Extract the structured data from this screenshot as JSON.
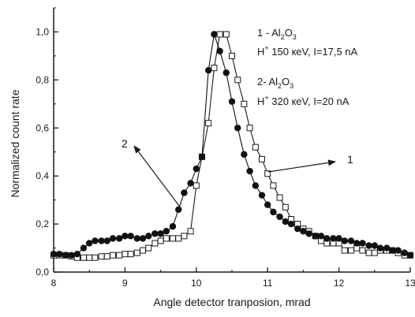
{
  "chart_data": {
    "type": "scatter",
    "xlabel": "Angle detector tranposion, mrad",
    "ylabel": "Normalized count rate",
    "xlim": [
      8,
      13
    ],
    "ylim": [
      0,
      1.1
    ],
    "xticks": [
      8,
      9,
      10,
      11,
      12,
      13
    ],
    "xtick_labels": [
      "8",
      "9",
      "10",
      "11",
      "12",
      "13"
    ],
    "yticks": [
      0,
      0.2,
      0.4,
      0.6,
      0.8,
      1.0
    ],
    "ytick_labels": [
      "0,0",
      "0,2",
      "0,4",
      "0,6",
      "0,8",
      "1,0"
    ],
    "series": [
      {
        "name": "1 - Al2O3 H+ 150 keV, I=17,5 nA",
        "marker": "open-square",
        "color": "#1a1a1a",
        "x": [
          8.0,
          8.08,
          8.17,
          8.25,
          8.33,
          8.42,
          8.5,
          8.58,
          8.67,
          8.75,
          8.83,
          8.92,
          9.0,
          9.08,
          9.17,
          9.25,
          9.33,
          9.42,
          9.5,
          9.58,
          9.67,
          9.75,
          9.83,
          9.92,
          10.0,
          10.08,
          10.17,
          10.25,
          10.33,
          10.42,
          10.5,
          10.58,
          10.67,
          10.75,
          10.83,
          10.92,
          11.0,
          11.08,
          11.17,
          11.25,
          11.33,
          11.42,
          11.5,
          11.58,
          11.67,
          11.75,
          11.83,
          11.92,
          12.0,
          12.08,
          12.17,
          12.25,
          12.33,
          12.42,
          12.5,
          12.58,
          12.67,
          12.75,
          12.83,
          12.92,
          13.0
        ],
        "y": [
          0.07,
          0.07,
          0.07,
          0.065,
          0.06,
          0.06,
          0.06,
          0.06,
          0.065,
          0.065,
          0.07,
          0.07,
          0.075,
          0.075,
          0.08,
          0.09,
          0.1,
          0.12,
          0.13,
          0.14,
          0.14,
          0.14,
          0.15,
          0.17,
          0.36,
          0.48,
          0.62,
          0.85,
          0.99,
          0.99,
          0.9,
          0.8,
          0.7,
          0.6,
          0.52,
          0.47,
          0.41,
          0.36,
          0.31,
          0.27,
          0.22,
          0.2,
          0.18,
          0.17,
          0.15,
          0.13,
          0.12,
          0.12,
          0.12,
          0.09,
          0.09,
          0.1,
          0.09,
          0.08,
          0.08,
          0.09,
          0.09,
          0.09,
          0.08,
          0.07,
          0.07
        ]
      },
      {
        "name": "2 - Al2O3 H+ 320 keV, I=20 nA",
        "marker": "filled-circle",
        "color": "#111111",
        "x": [
          8.0,
          8.08,
          8.17,
          8.25,
          8.33,
          8.42,
          8.5,
          8.58,
          8.67,
          8.75,
          8.83,
          8.92,
          9.0,
          9.08,
          9.17,
          9.25,
          9.33,
          9.42,
          9.5,
          9.58,
          9.67,
          9.75,
          9.83,
          9.92,
          10.0,
          10.08,
          10.17,
          10.25,
          10.33,
          10.42,
          10.5,
          10.58,
          10.67,
          10.75,
          10.83,
          10.92,
          11.0,
          11.08,
          11.17,
          11.25,
          11.33,
          11.42,
          11.5,
          11.58,
          11.67,
          11.75,
          11.83,
          11.92,
          12.0,
          12.08,
          12.17,
          12.25,
          12.33,
          12.42,
          12.5,
          12.58,
          12.67,
          12.75,
          12.83,
          12.92,
          13.0
        ],
        "y": [
          0.075,
          0.075,
          0.07,
          0.07,
          0.075,
          0.1,
          0.12,
          0.13,
          0.13,
          0.13,
          0.14,
          0.14,
          0.15,
          0.15,
          0.14,
          0.14,
          0.15,
          0.16,
          0.16,
          0.17,
          0.19,
          0.26,
          0.33,
          0.37,
          0.43,
          0.48,
          0.84,
          0.99,
          0.92,
          0.83,
          0.71,
          0.6,
          0.49,
          0.42,
          0.36,
          0.32,
          0.28,
          0.25,
          0.23,
          0.21,
          0.2,
          0.18,
          0.17,
          0.16,
          0.15,
          0.15,
          0.14,
          0.14,
          0.14,
          0.13,
          0.13,
          0.12,
          0.12,
          0.11,
          0.11,
          0.1,
          0.1,
          0.09,
          0.09,
          0.08,
          0.07
        ]
      }
    ],
    "annotations": {
      "series1_line1_prefix": "1 - Al",
      "series1_line1_sub1": "2",
      "series1_line1_mid": "O",
      "series1_line1_sub2": "3",
      "series1_line2_prefix": "H",
      "series1_line2_sup": "+",
      "series1_line2_rest": " 150 кeV, I=17,5 nA",
      "series2_line1_prefix": "2- Al",
      "series2_line1_sub1": "2",
      "series2_line1_mid": "O",
      "series2_line1_sub2": "3",
      "series2_line2_prefix": "H",
      "series2_line2_sup": "+",
      "series2_line2_rest": " 320 кeV, I=20 nA",
      "arrow1_label": "1",
      "arrow2_label": "2"
    }
  }
}
